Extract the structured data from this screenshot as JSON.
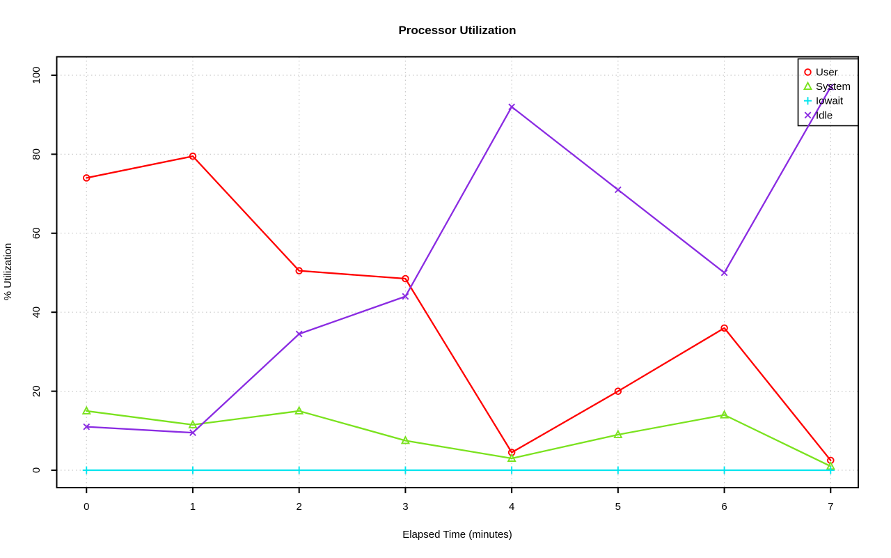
{
  "window": {
    "background": "#ffffff"
  },
  "chart_data": {
    "type": "line",
    "title": "Processor Utilization",
    "xlabel": "Elapsed Time (minutes)",
    "ylabel": "% Utilization",
    "x": [
      0,
      1,
      2,
      3,
      4,
      5,
      6,
      7
    ],
    "xticks": [
      "0",
      "1",
      "2",
      "3",
      "4",
      "5",
      "6",
      "7"
    ],
    "yticks": [
      "0",
      "20",
      "40",
      "60",
      "80",
      "100"
    ],
    "ytick_values": [
      0,
      20,
      40,
      60,
      80,
      100
    ],
    "xlim": [
      -0.28,
      7.26
    ],
    "ylim": [
      0,
      100
    ],
    "grid": "dotted both axes",
    "grid_color": "#c9c9c9",
    "axis_color": "#000000",
    "legend_position": "top-right",
    "series": [
      {
        "name": "User",
        "marker": "circle",
        "color": "#ff0000",
        "values": [
          74,
          79.5,
          50.5,
          48.5,
          4.5,
          20,
          36,
          2.5
        ]
      },
      {
        "name": "System",
        "marker": "triangle",
        "color": "#7ae21e",
        "values": [
          15,
          11.5,
          15,
          7.5,
          3,
          9,
          14,
          1
        ]
      },
      {
        "name": "Iowait",
        "marker": "plus",
        "color": "#00e5ee",
        "values": [
          0,
          0,
          0,
          0,
          0,
          0,
          0,
          0
        ]
      },
      {
        "name": "Idle",
        "marker": "x",
        "color": "#8a2be2",
        "values": [
          11,
          9.5,
          34.5,
          44,
          92,
          71,
          50,
          97
        ]
      }
    ]
  }
}
